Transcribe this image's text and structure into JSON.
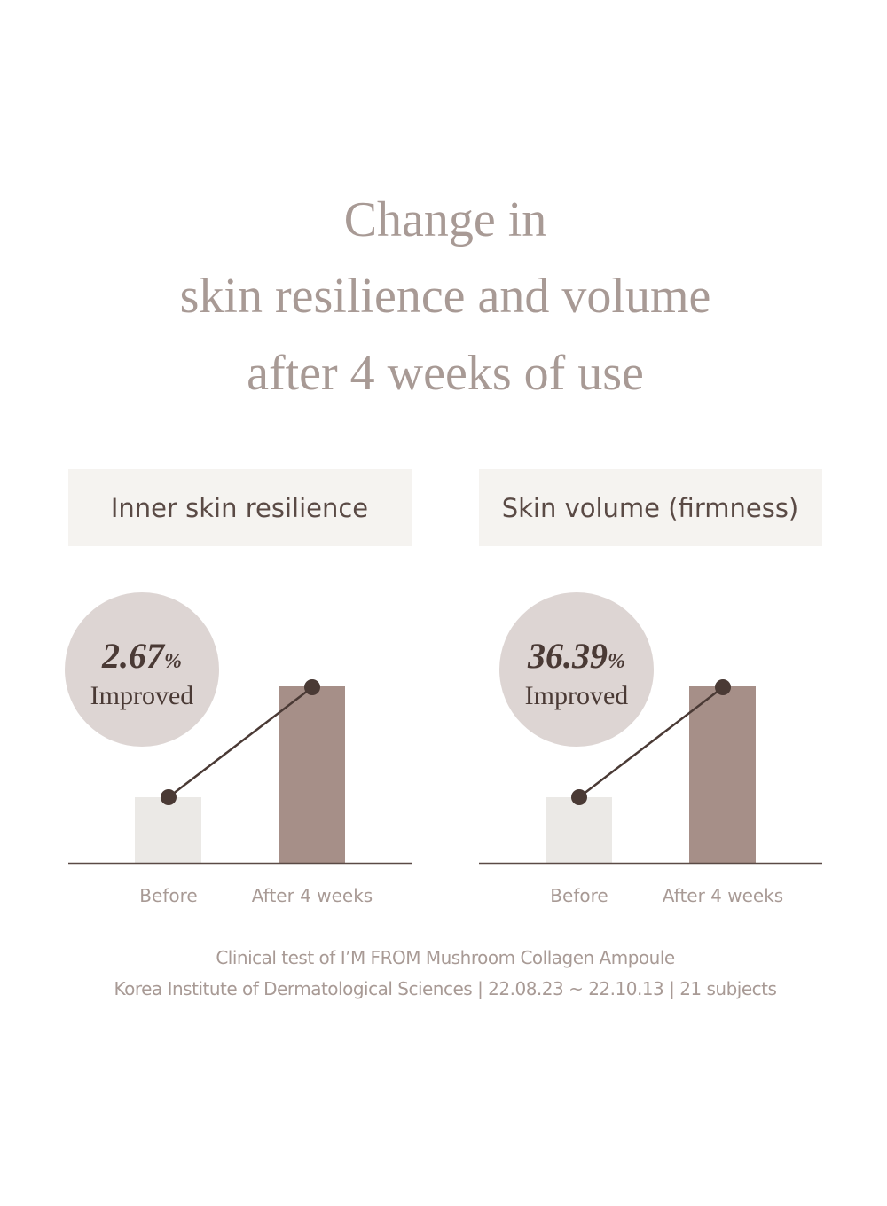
{
  "header": {
    "title_lines": [
      "Change in",
      "skin resilience and volume",
      "after 4 weeks of use"
    ]
  },
  "panels": [
    {
      "label": "Inner skin resilience",
      "improvement": {
        "value": "2.67",
        "unit": "%",
        "text": "Improved"
      },
      "bars": [
        "Before",
        "After 4 weeks"
      ]
    },
    {
      "label": "Skin volume (firmness)",
      "improvement": {
        "value": "36.39",
        "unit": "%",
        "text": "Improved"
      },
      "bars": [
        "Before",
        "After 4 weeks"
      ]
    }
  ],
  "footer": {
    "lines": [
      "Clinical test of I’M FROM Mushroom Collagen Ampoule",
      "Korea Institute of Dermatological Sciences | 22.08.23 ~ 22.10.13 | 21 subjects"
    ]
  }
}
